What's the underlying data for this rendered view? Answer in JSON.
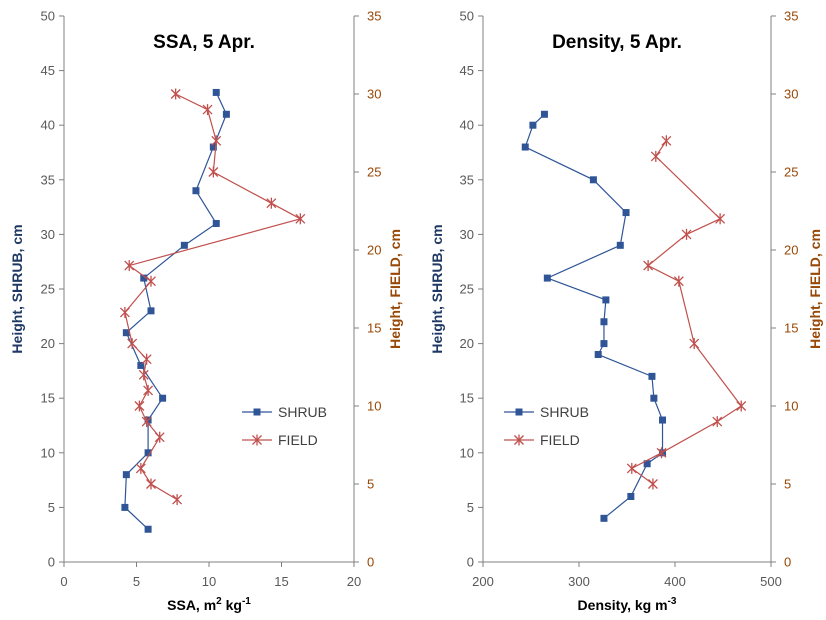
{
  "colors": {
    "shrub": "#2f5597",
    "field": "#c0504d",
    "left_axis": "#1f3864",
    "right_axis": "#984807",
    "axis": "#808080"
  },
  "chart_data": [
    {
      "type": "line",
      "title": "SSA, 5 Apr.",
      "xlabel": "SSA, m² kg⁻¹",
      "xlabel_parts": {
        "base": "SSA, m",
        "sup1": "2",
        "mid": " kg",
        "sup2": "-1"
      },
      "ylabel_left": "Height, SHRUB, cm",
      "ylabel_right": "Height, FIELD, cm",
      "xlim": [
        0,
        20
      ],
      "xticks": [
        0,
        5,
        10,
        15,
        20
      ],
      "ylim_left": [
        0,
        50
      ],
      "yticks_left": [
        0,
        5,
        10,
        15,
        20,
        25,
        30,
        35,
        40,
        45,
        50
      ],
      "ylim_right": [
        0,
        35
      ],
      "yticks_right": [
        0,
        5,
        10,
        15,
        20,
        25,
        30,
        35
      ],
      "legend": {
        "position": "lower-right",
        "entries": [
          "SHRUB",
          "FIELD"
        ]
      },
      "series": [
        {
          "name": "SHRUB",
          "axis": "left",
          "marker": "square",
          "x": [
            5.8,
            4.2,
            4.3,
            5.8,
            5.8,
            6.8,
            5.3,
            4.3,
            6.0,
            5.5,
            8.3,
            10.5,
            9.1,
            10.3,
            11.2,
            10.5
          ],
          "y": [
            3,
            5,
            8,
            10,
            13,
            15,
            18,
            21,
            23,
            26,
            29,
            31,
            34,
            38,
            41,
            43
          ]
        },
        {
          "name": "FIELD",
          "axis": "right",
          "marker": "star",
          "x": [
            7.8,
            6.0,
            5.3,
            6.6,
            5.7,
            5.2,
            5.8,
            5.5,
            5.7,
            4.7,
            4.2,
            6.0,
            4.5,
            16.3,
            14.3,
            10.3,
            10.5,
            9.9,
            7.7
          ],
          "y": [
            4,
            5,
            6,
            8,
            9,
            10,
            11,
            12,
            13,
            14,
            16,
            18,
            19,
            22,
            23,
            25,
            27,
            29,
            30
          ]
        }
      ]
    },
    {
      "type": "line",
      "title": "Density, 5 Apr.",
      "xlabel": "Density, kg m⁻³",
      "xlabel_parts": {
        "base": "Density, kg m",
        "sup1": "-3",
        "mid": "",
        "sup2": ""
      },
      "ylabel_left": "Height, SHRUB, cm",
      "ylabel_right": "Height, FIELD, cm",
      "xlim": [
        200,
        500
      ],
      "xticks": [
        200,
        300,
        400,
        500
      ],
      "ylim_left": [
        0,
        50
      ],
      "yticks_left": [
        0,
        5,
        10,
        15,
        20,
        25,
        30,
        35,
        40,
        45,
        50
      ],
      "ylim_right": [
        0,
        35
      ],
      "yticks_right": [
        0,
        5,
        10,
        15,
        20,
        25,
        30,
        35
      ],
      "legend": {
        "position": "lower-left",
        "entries": [
          "SHRUB",
          "FIELD"
        ]
      },
      "series": [
        {
          "name": "SHRUB",
          "axis": "left",
          "marker": "square",
          "x": [
            326,
            354,
            371,
            387,
            387,
            378,
            376,
            320,
            326,
            326,
            328,
            267,
            343,
            349,
            315,
            244,
            252,
            264
          ],
          "y": [
            4,
            6,
            9,
            10,
            13,
            15,
            17,
            19,
            20,
            22,
            24,
            26,
            29,
            32,
            35,
            38,
            40,
            41
          ]
        },
        {
          "name": "FIELD",
          "axis": "right",
          "marker": "star",
          "x": [
            377,
            355,
            386,
            444,
            469,
            420,
            404,
            372,
            412,
            447,
            380,
            391
          ],
          "y": [
            5,
            6,
            7,
            9,
            10,
            14,
            18,
            19,
            21,
            22,
            26,
            27
          ]
        }
      ]
    }
  ]
}
